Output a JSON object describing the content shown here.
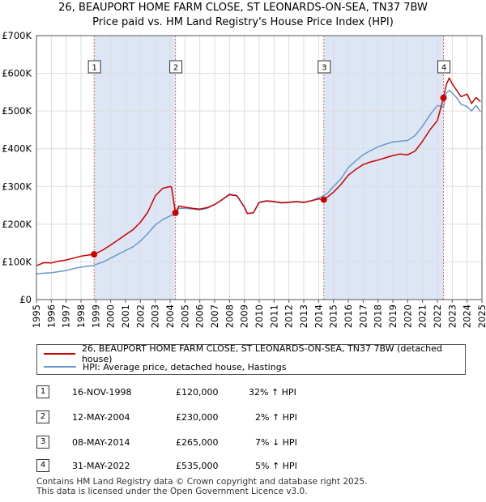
{
  "title_line1": "26, BEAUPORT HOME FARM CLOSE, ST LEONARDS-ON-SEA, TN37 7BW",
  "title_line2": "Price paid vs. HM Land Registry's House Price Index (HPI)",
  "colors": {
    "price": "#cc0000",
    "hpi": "#6699cc",
    "shade": "#dde6f5",
    "grid": "#dddddd",
    "marker_line": "#dd6666"
  },
  "chart_data": {
    "type": "line",
    "title": "Price paid vs. HM Land Registry's House Price Index (HPI)",
    "xlabel": "",
    "ylabel": "",
    "xlim": [
      1995.0,
      2025.0
    ],
    "ylim": [
      0,
      700000
    ],
    "ytick_values": [
      0,
      100000,
      200000,
      300000,
      400000,
      500000,
      600000,
      700000
    ],
    "ytick_labels": [
      "£0",
      "£100K",
      "£200K",
      "£300K",
      "£400K",
      "£500K",
      "£600K",
      "£700K"
    ],
    "xtick_labels": [
      "1995",
      "1996",
      "1997",
      "1998",
      "1999",
      "2000",
      "2001",
      "2002",
      "2003",
      "2004",
      "2005",
      "2006",
      "2007",
      "2008",
      "2009",
      "2010",
      "2011",
      "2012",
      "2013",
      "2014",
      "2015",
      "2016",
      "2017",
      "2018",
      "2019",
      "2020",
      "2021",
      "2022",
      "2023",
      "2024",
      "2025"
    ],
    "grid": true,
    "series": [
      {
        "name": "26, BEAUPORT HOME FARM CLOSE, ST LEONARDS-ON-SEA, TN37 7BW (detached house)",
        "color": "#cc0000",
        "x": [
          1995.0,
          1995.5,
          1996.0,
          1996.5,
          1997.0,
          1997.5,
          1998.0,
          1998.5,
          1998.88,
          1999.5,
          2000.0,
          2000.5,
          2001.0,
          2001.5,
          2002.0,
          2002.5,
          2003.0,
          2003.5,
          2004.0,
          2004.1,
          2004.36,
          2004.6,
          2005.0,
          2005.5,
          2006.0,
          2006.5,
          2007.0,
          2007.5,
          2008.0,
          2008.5,
          2009.0,
          2009.2,
          2009.6,
          2010.0,
          2010.5,
          2011.0,
          2011.5,
          2012.0,
          2012.5,
          2013.0,
          2013.5,
          2014.0,
          2014.35,
          2014.6,
          2015.0,
          2015.5,
          2016.0,
          2016.5,
          2017.0,
          2017.5,
          2018.0,
          2018.5,
          2019.0,
          2019.5,
          2020.0,
          2020.5,
          2021.0,
          2021.5,
          2022.0,
          2022.41,
          2022.6,
          2022.8,
          2023.0,
          2023.3,
          2023.6,
          2024.0,
          2024.3,
          2024.6,
          2024.9
        ],
        "values": [
          90000,
          98000,
          97000,
          102000,
          105000,
          110000,
          115000,
          118000,
          120000,
          132000,
          145000,
          158000,
          172000,
          185000,
          205000,
          232000,
          275000,
          295000,
          300000,
          298000,
          230000,
          248000,
          245000,
          242000,
          240000,
          244000,
          252000,
          265000,
          278000,
          275000,
          245000,
          228000,
          230000,
          258000,
          262000,
          260000,
          257000,
          258000,
          260000,
          258000,
          262000,
          267000,
          265000,
          272000,
          285000,
          305000,
          330000,
          345000,
          358000,
          365000,
          370000,
          376000,
          382000,
          386000,
          384000,
          394000,
          420000,
          450000,
          475000,
          535000,
          570000,
          588000,
          572000,
          555000,
          538000,
          545000,
          520000,
          536000,
          525000
        ]
      },
      {
        "name": "HPI: Average price, detached house, Hastings",
        "color": "#6699cc",
        "x": [
          1995.0,
          1995.5,
          1996.0,
          1996.5,
          1997.0,
          1997.5,
          1998.0,
          1998.5,
          1998.88,
          1999.5,
          2000.0,
          2000.5,
          2001.0,
          2001.5,
          2002.0,
          2002.5,
          2003.0,
          2003.5,
          2004.0,
          2004.36,
          2004.6,
          2005.0,
          2005.5,
          2006.0,
          2006.5,
          2007.0,
          2007.5,
          2008.0,
          2008.5,
          2009.0,
          2009.2,
          2009.6,
          2010.0,
          2010.5,
          2011.0,
          2011.5,
          2012.0,
          2012.5,
          2013.0,
          2013.5,
          2014.0,
          2014.35,
          2014.6,
          2015.0,
          2015.5,
          2016.0,
          2016.5,
          2017.0,
          2017.5,
          2018.0,
          2018.5,
          2019.0,
          2019.5,
          2020.0,
          2020.5,
          2021.0,
          2021.5,
          2022.0,
          2022.41,
          2022.6,
          2022.8,
          2023.0,
          2023.3,
          2023.6,
          2024.0,
          2024.3,
          2024.6,
          2024.9
        ],
        "values": [
          68000,
          70000,
          71000,
          74000,
          77000,
          82000,
          86000,
          89000,
          91000,
          100000,
          110000,
          120000,
          130000,
          140000,
          155000,
          175000,
          198000,
          212000,
          222000,
          226000,
          242000,
          242000,
          240000,
          238000,
          242000,
          252000,
          265000,
          280000,
          276000,
          246000,
          228000,
          230000,
          257000,
          261000,
          259000,
          256000,
          257000,
          259000,
          257000,
          262000,
          270000,
          276000,
          282000,
          300000,
          320000,
          350000,
          368000,
          384000,
          395000,
          405000,
          412000,
          418000,
          420000,
          422000,
          435000,
          460000,
          490000,
          515000,
          510000,
          548000,
          555000,
          548000,
          535000,
          518000,
          512000,
          500000,
          515000,
          498000
        ]
      }
    ],
    "transactions": [
      {
        "id": "1",
        "x": 1998.88,
        "value": 120000,
        "date": "16-NOV-1998",
        "price": "£120,000",
        "hpi": "32% ↑ HPI"
      },
      {
        "id": "2",
        "x": 2004.36,
        "value": 230000,
        "date": "12-MAY-2004",
        "price": "£230,000",
        "hpi": "2% ↑ HPI"
      },
      {
        "id": "3",
        "x": 2014.35,
        "value": 265000,
        "date": "08-MAY-2014",
        "price": "£265,000",
        "hpi": "7% ↓ HPI"
      },
      {
        "id": "4",
        "x": 2022.41,
        "value": 535000,
        "date": "31-MAY-2022",
        "price": "£535,000",
        "hpi": "5% ↑ HPI"
      }
    ],
    "shaded_ranges": [
      [
        1998.88,
        2004.36
      ],
      [
        2014.35,
        2022.41
      ]
    ],
    "legend_position": "bottom"
  },
  "legend": {
    "price_label": "26, BEAUPORT HOME FARM CLOSE, ST LEONARDS-ON-SEA, TN37 7BW (detached house)",
    "hpi_label": "HPI: Average price, detached house, Hastings"
  },
  "footer": {
    "line1": "Contains HM Land Registry data © Crown copyright and database right 2025.",
    "line2": "This data is licensed under the Open Government Licence v3.0."
  }
}
